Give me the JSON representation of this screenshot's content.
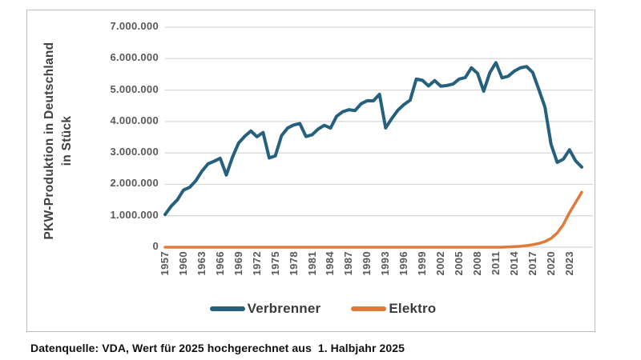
{
  "page": {
    "caption": "Datenquelle: VDA, Wert für 2025 hochgerechnet aus  1. Halbjahr 2025"
  },
  "chart_data": {
    "type": "line",
    "title": "",
    "xlabel": "",
    "ylabel": "PKW-Produktion in Deutschland in Stück",
    "ylim": [
      0,
      7000000
    ],
    "xlim": [
      1957,
      2025
    ],
    "grid": "horizontal-only",
    "grid_color": "#d6d6d6",
    "legend_position": "bottom",
    "y_ticks": [
      {
        "value": 0,
        "label": "0"
      },
      {
        "value": 1000000,
        "label": "1.000.000"
      },
      {
        "value": 2000000,
        "label": "2.000.000"
      },
      {
        "value": 3000000,
        "label": "3.000.000"
      },
      {
        "value": 4000000,
        "label": "4.000.000"
      },
      {
        "value": 5000000,
        "label": "5.000.000"
      },
      {
        "value": 6000000,
        "label": "6.000.000"
      },
      {
        "value": 7000000,
        "label": "7.000.000"
      }
    ],
    "x_tick_years": [
      "1957",
      "1960",
      "1963",
      "1966",
      "1969",
      "1972",
      "1975",
      "1978",
      "1981",
      "1984",
      "1987",
      "1990",
      "1993",
      "1996",
      "1999",
      "2002",
      "2005",
      "2008",
      "2011",
      "2014",
      "2017",
      "2020",
      "2023"
    ],
    "years": [
      1957,
      1958,
      1959,
      1960,
      1961,
      1962,
      1963,
      1964,
      1965,
      1966,
      1967,
      1968,
      1969,
      1970,
      1971,
      1972,
      1973,
      1974,
      1975,
      1976,
      1977,
      1978,
      1979,
      1980,
      1981,
      1982,
      1983,
      1984,
      1985,
      1986,
      1987,
      1988,
      1989,
      1990,
      1991,
      1992,
      1993,
      1994,
      1995,
      1996,
      1997,
      1998,
      1999,
      2000,
      2001,
      2002,
      2003,
      2004,
      2005,
      2006,
      2007,
      2008,
      2009,
      2010,
      2011,
      2012,
      2013,
      2014,
      2015,
      2016,
      2017,
      2018,
      2019,
      2020,
      2021,
      2022,
      2023,
      2024,
      2025
    ],
    "series": [
      {
        "name": "Verbrenner",
        "color": "#25607D",
        "values": [
          1040000,
          1307000,
          1503000,
          1817000,
          1904000,
          2109000,
          2414000,
          2650000,
          2734000,
          2830000,
          2296000,
          2862000,
          3313000,
          3528000,
          3697000,
          3515000,
          3650000,
          2840000,
          2906000,
          3547000,
          3791000,
          3890000,
          3933000,
          3521000,
          3578000,
          3761000,
          3878000,
          3790000,
          4167000,
          4311000,
          4374000,
          4346000,
          4564000,
          4661000,
          4659000,
          4864000,
          3794000,
          4094000,
          4360000,
          4540000,
          4678000,
          5348000,
          5310000,
          5132000,
          5301000,
          5123000,
          5145000,
          5192000,
          5350000,
          5399000,
          5709000,
          5532000,
          4965000,
          5552000,
          5872000,
          5388000,
          5440000,
          5604000,
          5708000,
          5747000,
          5560000,
          5020000,
          4460000,
          3270000,
          2700000,
          2800000,
          3100000,
          2750000,
          2550000
        ]
      },
      {
        "name": "Elektro",
        "color": "#E07A3B",
        "values": [
          0,
          0,
          0,
          0,
          0,
          0,
          0,
          0,
          0,
          0,
          0,
          0,
          0,
          0,
          0,
          0,
          0,
          0,
          0,
          0,
          0,
          0,
          0,
          0,
          0,
          0,
          0,
          0,
          0,
          0,
          0,
          0,
          0,
          0,
          0,
          0,
          0,
          0,
          0,
          0,
          0,
          0,
          0,
          0,
          0,
          0,
          0,
          0,
          0,
          0,
          0,
          0,
          0,
          0,
          0,
          0,
          10000,
          20000,
          30000,
          50000,
          80000,
          120000,
          180000,
          280000,
          450000,
          720000,
          1100000,
          1420000,
          1750000
        ]
      }
    ]
  }
}
